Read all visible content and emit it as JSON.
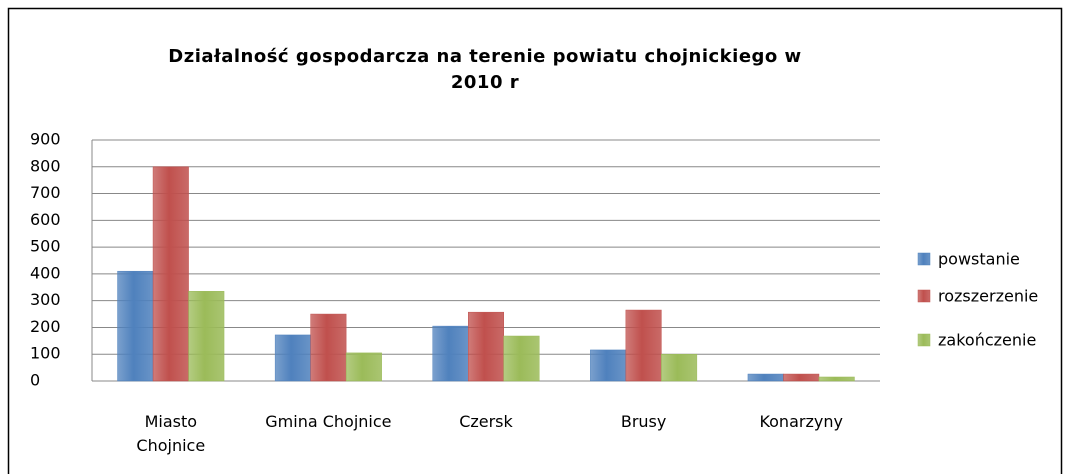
{
  "chart_data": {
    "type": "bar",
    "title": "Działalność gospodarcza na terenie powiatu chojnickiego w 2010 r",
    "categories": [
      "Miasto Chojnice",
      "Gmina Chojnice",
      "Czersk",
      "Brusy",
      "Konarzyny"
    ],
    "series": [
      {
        "name": "powstanie",
        "color": "#4f81bd",
        "values": [
          410,
          172,
          205,
          116,
          26
        ]
      },
      {
        "name": "rozszerzenie",
        "color": "#c0504d",
        "values": [
          800,
          250,
          257,
          265,
          26
        ]
      },
      {
        "name": "zakończenie",
        "color": "#9bbb59",
        "values": [
          335,
          105,
          168,
          100,
          15
        ]
      }
    ],
    "ylim": [
      0,
      900
    ],
    "yticks": [
      0,
      100,
      200,
      300,
      400,
      500,
      600,
      700,
      800,
      900
    ],
    "grid": true,
    "legend": "right"
  }
}
